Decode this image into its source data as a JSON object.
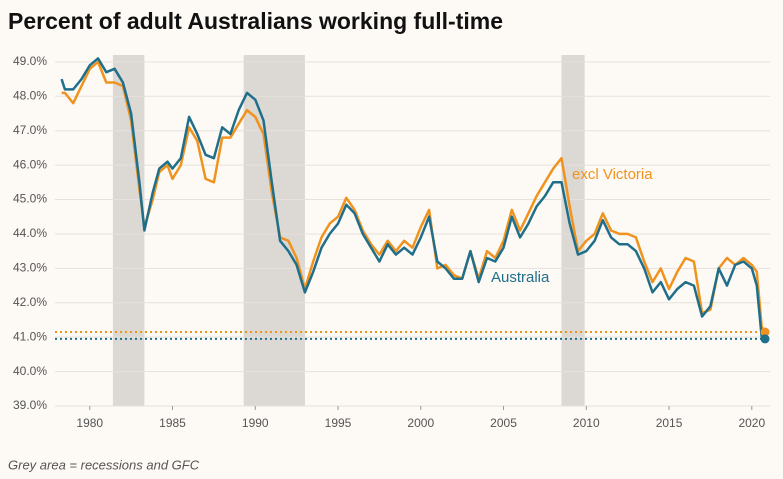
{
  "chart_data": {
    "type": "line",
    "title": "Percent of adult Australians working full-time",
    "footnote": "Grey area = recessions and GFC",
    "x": [
      1978.3,
      1978.5,
      1979.0,
      1979.5,
      1980.0,
      1980.5,
      1981.0,
      1981.5,
      1982.0,
      1982.5,
      1983.0,
      1983.3,
      1983.8,
      1984.2,
      1984.7,
      1985.0,
      1985.5,
      1986.0,
      1986.5,
      1987.0,
      1987.5,
      1988.0,
      1988.5,
      1989.0,
      1989.5,
      1990.0,
      1990.5,
      1991.0,
      1991.5,
      1992.0,
      1992.5,
      1993.0,
      1993.5,
      1994.0,
      1994.5,
      1995.0,
      1995.5,
      1996.0,
      1996.5,
      1997.0,
      1997.5,
      1998.0,
      1998.5,
      1999.0,
      1999.5,
      2000.0,
      2000.5,
      2001.0,
      2001.5,
      2002.0,
      2002.5,
      2003.0,
      2003.5,
      2004.0,
      2004.5,
      2005.0,
      2005.5,
      2006.0,
      2006.5,
      2007.0,
      2007.5,
      2008.0,
      2008.5,
      2009.0,
      2009.5,
      2010.0,
      2010.5,
      2011.0,
      2011.5,
      2012.0,
      2012.5,
      2013.0,
      2013.5,
      2014.0,
      2014.5,
      2015.0,
      2015.5,
      2016.0,
      2016.5,
      2017.0,
      2017.5,
      2018.0,
      2018.5,
      2019.0,
      2019.5,
      2020.0,
      2020.3,
      2020.6,
      2020.8
    ],
    "series": [
      {
        "name": "excl Victoria",
        "color": "#f0931e",
        "values": [
          48.1,
          48.1,
          47.8,
          48.3,
          48.8,
          49.0,
          48.4,
          48.4,
          48.3,
          47.3,
          45.3,
          44.2,
          45.0,
          45.8,
          46.0,
          45.6,
          46.0,
          47.1,
          46.7,
          45.6,
          45.5,
          46.8,
          46.8,
          47.2,
          47.6,
          47.4,
          46.9,
          45.2,
          43.9,
          43.8,
          43.3,
          42.4,
          43.2,
          43.9,
          44.3,
          44.5,
          45.05,
          44.7,
          44.1,
          43.7,
          43.4,
          43.8,
          43.5,
          43.8,
          43.6,
          44.2,
          44.7,
          43.0,
          43.1,
          42.8,
          42.7,
          43.5,
          42.7,
          43.5,
          43.3,
          43.8,
          44.7,
          44.1,
          44.6,
          45.1,
          45.5,
          45.9,
          46.2,
          44.8,
          43.5,
          43.8,
          44.0,
          44.6,
          44.1,
          44.0,
          44.0,
          43.9,
          43.2,
          42.6,
          43.0,
          42.4,
          42.9,
          43.3,
          43.2,
          41.7,
          41.8,
          43.0,
          43.3,
          43.1,
          43.3,
          43.1,
          42.9,
          41.3,
          41.15
        ]
      },
      {
        "name": "Australia",
        "color": "#1f6f8b",
        "values": [
          48.5,
          48.2,
          48.2,
          48.5,
          48.9,
          49.1,
          48.7,
          48.8,
          48.4,
          47.5,
          45.5,
          44.1,
          45.2,
          45.9,
          46.1,
          45.9,
          46.2,
          47.4,
          46.9,
          46.3,
          46.2,
          47.1,
          46.9,
          47.6,
          48.1,
          47.9,
          47.3,
          45.5,
          43.8,
          43.5,
          43.1,
          42.3,
          42.9,
          43.6,
          44.0,
          44.3,
          44.85,
          44.6,
          44.0,
          43.6,
          43.2,
          43.7,
          43.4,
          43.6,
          43.4,
          43.9,
          44.5,
          43.2,
          43.0,
          42.7,
          42.7,
          43.5,
          42.6,
          43.3,
          43.2,
          43.6,
          44.5,
          43.9,
          44.3,
          44.8,
          45.1,
          45.5,
          45.5,
          44.3,
          43.4,
          43.5,
          43.8,
          44.4,
          43.9,
          43.7,
          43.7,
          43.5,
          43.0,
          42.3,
          42.6,
          42.1,
          42.4,
          42.6,
          42.5,
          41.6,
          41.9,
          43.0,
          42.5,
          43.1,
          43.2,
          43.0,
          42.5,
          41.0,
          40.95
        ]
      }
    ],
    "recessions": [
      [
        1981.4,
        1983.3
      ],
      [
        1989.3,
        1993.0
      ],
      [
        2008.5,
        2009.9
      ]
    ],
    "xlim": [
      1977.9,
      2021.1
    ],
    "xticks": [
      1980,
      1985,
      1990,
      1995,
      2000,
      2005,
      2010,
      2015,
      2020
    ],
    "ylim": [
      39,
      49.2
    ],
    "yticks": [
      {
        "value": 39,
        "label": "39.0%"
      },
      {
        "value": 40,
        "label": "40.0%"
      },
      {
        "value": 41,
        "label": "41.0%"
      },
      {
        "value": 42,
        "label": "42.0%"
      },
      {
        "value": 43,
        "label": "43.0%"
      },
      {
        "value": 44,
        "label": "44.0%"
      },
      {
        "value": 45,
        "label": "45.0%"
      },
      {
        "value": 46,
        "label": "46.0%"
      },
      {
        "value": 47,
        "label": "47.0%"
      },
      {
        "value": 48,
        "label": "48.0%"
      },
      {
        "value": 49,
        "label": "49.0%"
      }
    ],
    "grid": true
  }
}
